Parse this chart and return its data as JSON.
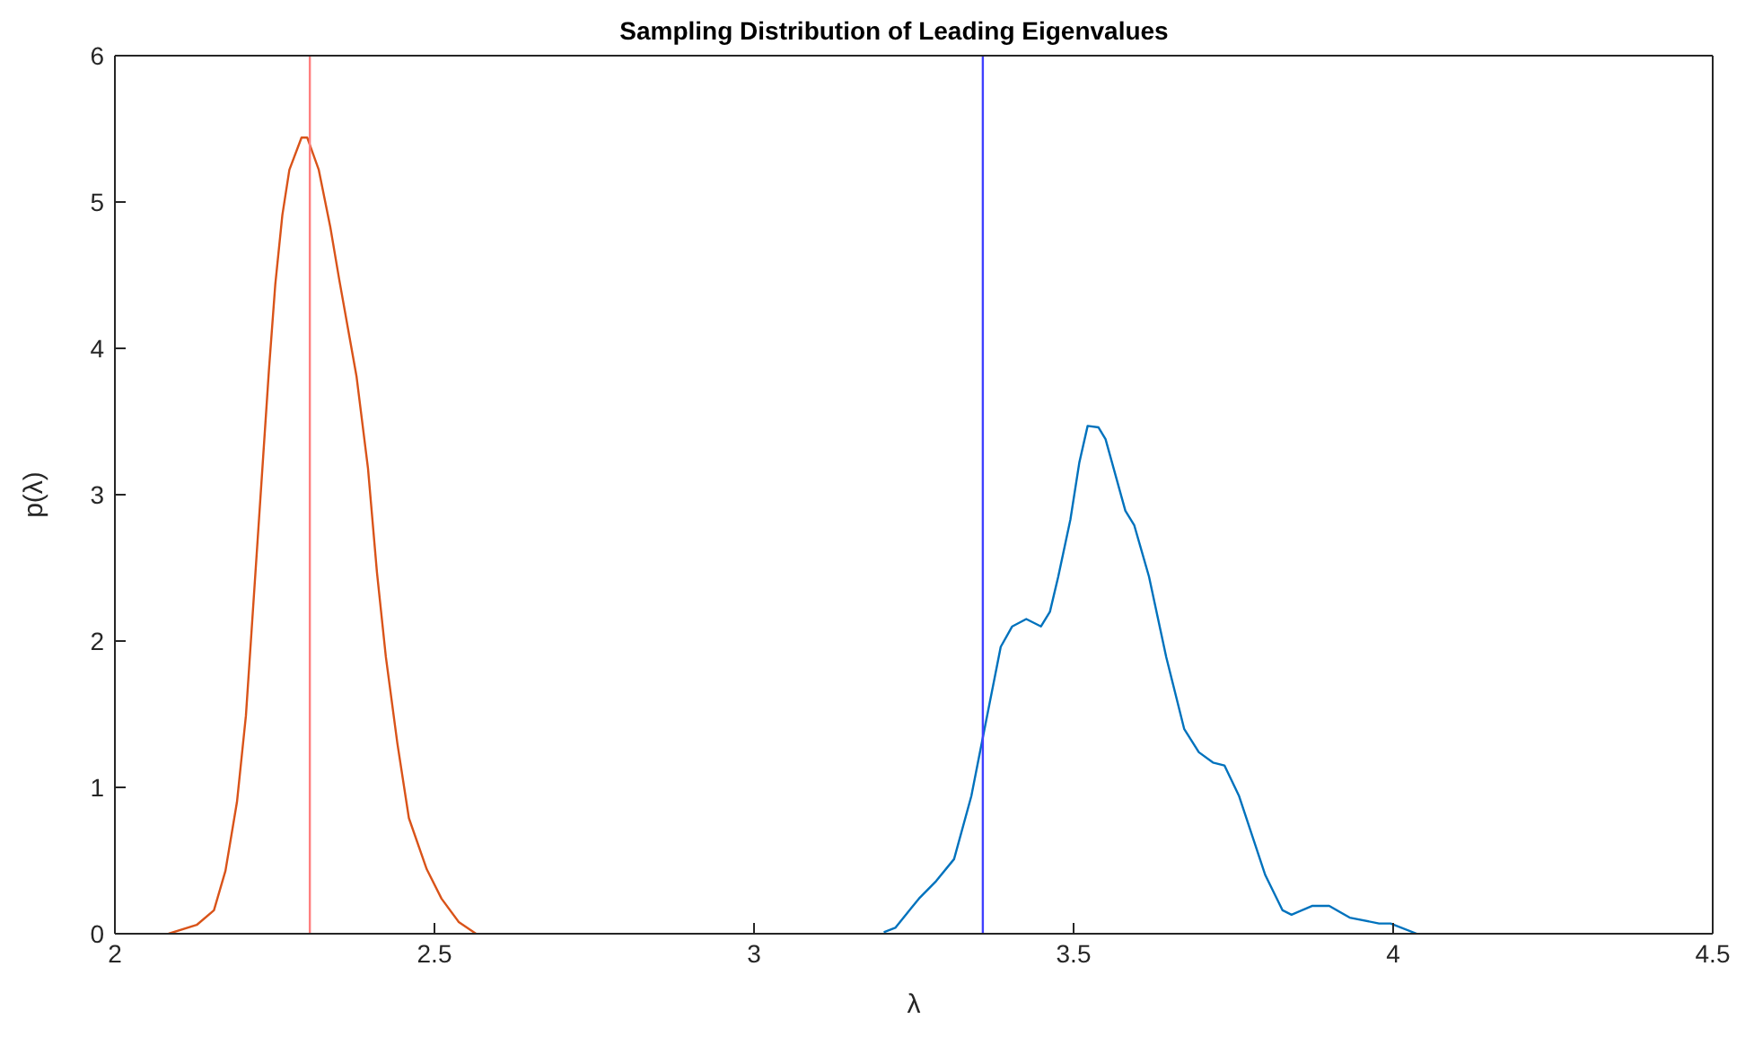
{
  "chart_data": {
    "type": "line",
    "title": "Sampling Distribution of Leading Eigenvalues",
    "xlabel": "λ",
    "ylabel": "p(λ)",
    "xlim": [
      2,
      4.5
    ],
    "xticks": [
      2,
      2.5,
      3,
      3.5,
      4,
      4.5
    ],
    "ylim": [
      0,
      6
    ],
    "yticks": [
      0,
      1,
      2,
      3,
      4,
      5,
      6
    ],
    "grid": false,
    "marker": "none",
    "line_style": "solid",
    "series": [
      {
        "color": "#0072bd",
        "x": [
          3.203,
          3.221,
          3.258,
          3.285,
          3.313,
          3.34,
          3.358,
          3.386,
          3.404,
          3.426,
          3.449,
          3.463,
          3.476,
          3.495,
          3.509,
          3.522,
          3.539,
          3.55,
          3.581,
          3.595,
          3.618,
          3.645,
          3.673,
          3.696,
          3.718,
          3.736,
          3.759,
          3.8,
          3.827,
          3.841,
          3.873,
          3.9,
          3.932,
          3.978,
          3.996,
          4.037
        ],
        "values": [
          0.01,
          0.04,
          0.24,
          0.36,
          0.51,
          0.94,
          1.34,
          1.96,
          2.1,
          2.15,
          2.1,
          2.2,
          2.44,
          2.83,
          3.22,
          3.47,
          3.46,
          3.38,
          2.89,
          2.79,
          2.44,
          1.89,
          1.4,
          1.24,
          1.17,
          1.15,
          0.94,
          0.4,
          0.16,
          0.13,
          0.19,
          0.19,
          0.11,
          0.07,
          0.07,
          0
        ]
      },
      {
        "color": "#d95319",
        "x": [
          2.084,
          2.128,
          2.155,
          2.173,
          2.191,
          2.205,
          2.214,
          2.223,
          2.232,
          2.241,
          2.251,
          2.262,
          2.273,
          2.292,
          2.301,
          2.319,
          2.337,
          2.351,
          2.378,
          2.396,
          2.41,
          2.424,
          2.442,
          2.46,
          2.488,
          2.511,
          2.538,
          2.565
        ],
        "values": [
          0,
          0.06,
          0.16,
          0.43,
          0.9,
          1.49,
          2.08,
          2.67,
          3.26,
          3.85,
          4.44,
          4.91,
          5.22,
          5.44,
          5.44,
          5.22,
          4.83,
          4.47,
          3.81,
          3.18,
          2.47,
          1.89,
          1.3,
          0.79,
          0.44,
          0.24,
          0.08,
          0
        ]
      }
    ],
    "ref_lines": [
      {
        "axis": "x",
        "value": 2.305,
        "color": "#ff7f7f",
        "line_style": "solid"
      },
      {
        "axis": "x",
        "value": 3.358,
        "color": "#4040ff",
        "line_style": "solid"
      }
    ]
  }
}
